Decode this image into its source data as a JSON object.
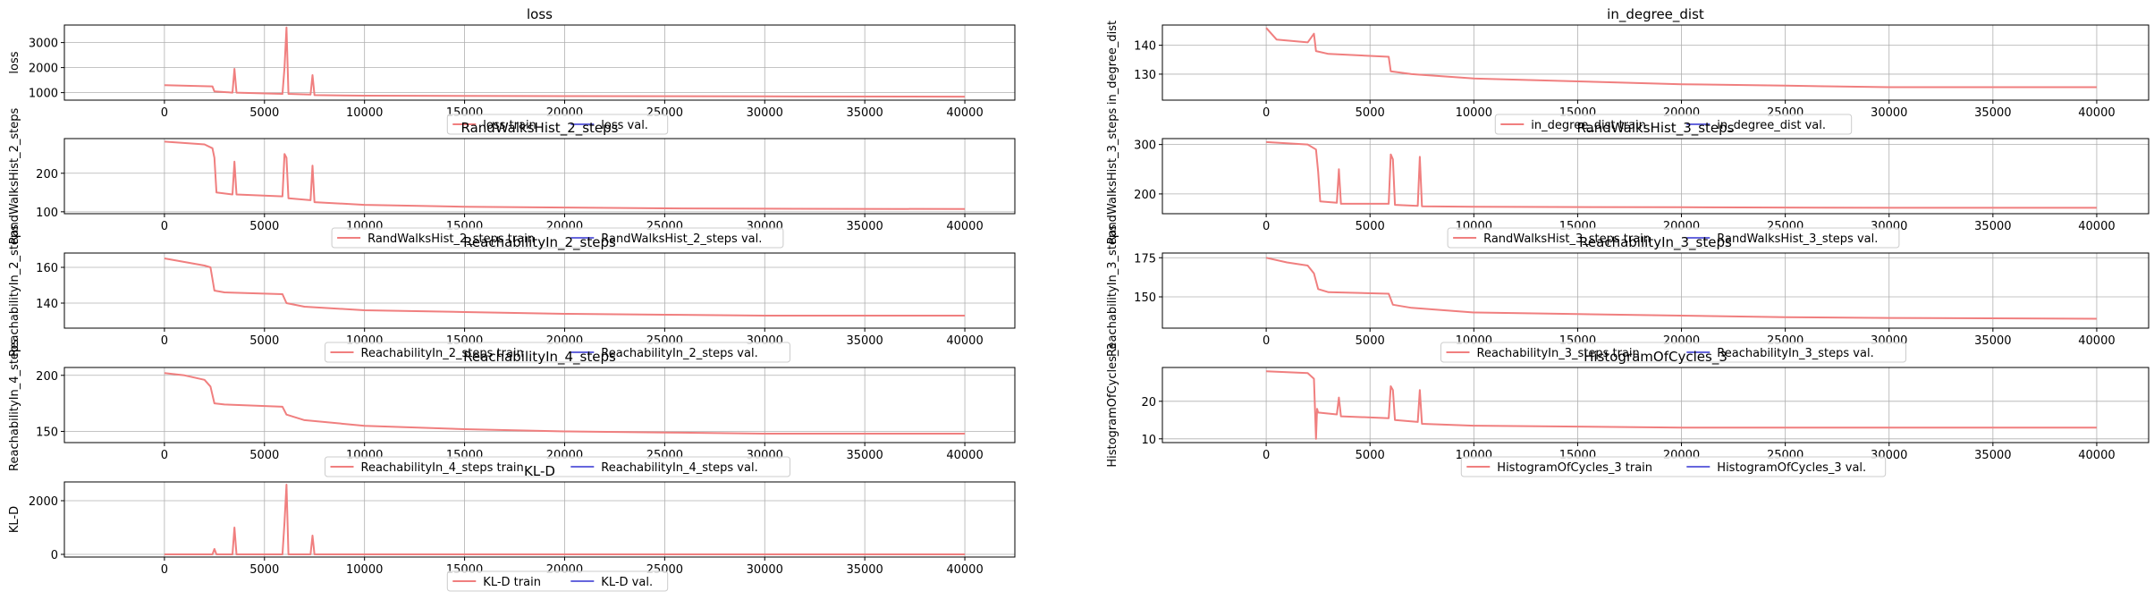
{
  "figure": {
    "x_ticks": [
      "0",
      "5000",
      "10000",
      "15000",
      "20000",
      "25000",
      "30000",
      "35000",
      "40000"
    ]
  },
  "colors": {
    "train": "#f07f7f",
    "val": "#6666dd",
    "grid": "#b0b0b0"
  },
  "chart_data": [
    {
      "id": "loss",
      "type": "line",
      "title": "loss",
      "ylabel": "loss",
      "xlim": [
        -5000,
        42500
      ],
      "ylim": [
        700,
        3700
      ],
      "yticks": [
        1000,
        2000,
        3000
      ],
      "grid": true,
      "legend": {
        "placement": "lower-center",
        "entries": [
          "loss train",
          "loss val."
        ]
      },
      "series": [
        {
          "name": "loss train",
          "role": "train",
          "x": [
            0,
            2400,
            2500,
            3400,
            3500,
            3600,
            5900,
            6000,
            6100,
            6200,
            7300,
            7400,
            7500,
            10000,
            20000,
            30000,
            40000
          ],
          "y": [
            1300,
            1250,
            1050,
            1000,
            1950,
            1000,
            950,
            2000,
            3600,
            950,
            920,
            1700,
            900,
            880,
            860,
            850,
            840
          ]
        },
        {
          "name": "loss val.",
          "role": "val",
          "x": [],
          "y": []
        }
      ]
    },
    {
      "id": "in_degree",
      "type": "line",
      "title": "in_degree_dist",
      "ylabel": "in_degree_dist",
      "xlim": [
        -5000,
        42500
      ],
      "ylim": [
        121,
        147
      ],
      "yticks": [
        130,
        140
      ],
      "grid": true,
      "legend": {
        "placement": "lower-center",
        "entries": [
          "in_degree_dist train",
          "in_degree_dist val."
        ]
      },
      "series": [
        {
          "name": "in_degree_dist train",
          "role": "train",
          "x": [
            0,
            500,
            2000,
            2300,
            2400,
            3000,
            5900,
            6000,
            7000,
            10000,
            15000,
            20000,
            25000,
            30000,
            35000,
            40000
          ],
          "y": [
            146,
            142,
            141,
            144,
            138,
            137,
            136,
            131,
            130,
            128.5,
            127.5,
            126.5,
            126,
            125.5,
            125.5,
            125.5
          ]
        },
        {
          "name": "in_degree_dist val.",
          "role": "val",
          "x": [],
          "y": []
        }
      ]
    },
    {
      "id": "rw2",
      "type": "line",
      "title": "RandWalksHist_2_steps",
      "ylabel": "RandWalksHist_2_steps",
      "xlim": [
        -5000,
        42500
      ],
      "ylim": [
        95,
        290
      ],
      "yticks": [
        100,
        200
      ],
      "grid": true,
      "legend": {
        "placement": "lower-center",
        "entries": [
          "RandWalksHist_2_steps train",
          "RandWalksHist_2_steps val."
        ]
      },
      "series": [
        {
          "name": "RandWalksHist_2_steps train",
          "role": "train",
          "x": [
            0,
            2000,
            2400,
            2500,
            2600,
            3400,
            3500,
            3600,
            5900,
            6000,
            6100,
            6200,
            7300,
            7400,
            7500,
            10000,
            15000,
            20000,
            25000,
            30000,
            40000
          ],
          "y": [
            282,
            275,
            265,
            240,
            150,
            145,
            230,
            145,
            140,
            250,
            240,
            135,
            130,
            220,
            125,
            118,
            113,
            111,
            109,
            108,
            107
          ]
        },
        {
          "name": "RandWalksHist_2_steps val.",
          "role": "val",
          "x": [],
          "y": []
        }
      ]
    },
    {
      "id": "rw3",
      "type": "line",
      "title": "RandWalksHist_3_steps",
      "ylabel": "RandWalksHist_3_steps",
      "xlim": [
        -5000,
        42500
      ],
      "ylim": [
        160,
        312
      ],
      "yticks": [
        200,
        300
      ],
      "grid": true,
      "legend": {
        "placement": "lower-center",
        "entries": [
          "RandWalksHist_3_steps train",
          "RandWalksHist_3_steps val."
        ]
      },
      "series": [
        {
          "name": "RandWalksHist_3_steps train",
          "role": "train",
          "x": [
            0,
            2000,
            2400,
            2500,
            2600,
            3400,
            3500,
            3600,
            5900,
            6000,
            6100,
            6200,
            7300,
            7400,
            7500,
            10000,
            20000,
            30000,
            40000
          ],
          "y": [
            305,
            300,
            290,
            245,
            185,
            182,
            250,
            180,
            180,
            280,
            270,
            178,
            176,
            275,
            175,
            174,
            173,
            172,
            172
          ]
        },
        {
          "name": "RandWalksHist_3_steps val.",
          "role": "val",
          "x": [],
          "y": []
        }
      ]
    },
    {
      "id": "reach2",
      "type": "line",
      "title": "ReachabilityIn_2_steps",
      "ylabel": "ReachabilityIn_2_steps",
      "xlim": [
        -5000,
        42500
      ],
      "ylim": [
        126,
        168
      ],
      "yticks": [
        140,
        160
      ],
      "grid": true,
      "legend": {
        "placement": "lower-center",
        "entries": [
          "ReachabilityIn_2_steps train",
          "ReachabilityIn_2_steps val."
        ]
      },
      "series": [
        {
          "name": "ReachabilityIn_2_steps train",
          "role": "train",
          "x": [
            0,
            1000,
            2000,
            2300,
            2500,
            3000,
            5900,
            6100,
            7000,
            10000,
            15000,
            20000,
            25000,
            30000,
            40000
          ],
          "y": [
            165,
            163,
            161,
            160,
            147,
            146,
            145,
            140,
            138,
            136,
            135,
            134,
            133.5,
            133,
            133
          ]
        },
        {
          "name": "ReachabilityIn_2_steps val.",
          "role": "val",
          "x": [],
          "y": []
        }
      ]
    },
    {
      "id": "reach3",
      "type": "line",
      "title": "ReachabilityIn_3_steps",
      "ylabel": "ReachabilityIn_3_steps",
      "xlim": [
        -5000,
        42500
      ],
      "ylim": [
        130,
        178
      ],
      "yticks": [
        150,
        175
      ],
      "grid": true,
      "legend": {
        "placement": "lower-center",
        "entries": [
          "ReachabilityIn_3_steps train",
          "ReachabilityIn_3_steps val."
        ]
      },
      "series": [
        {
          "name": "ReachabilityIn_3_steps train",
          "role": "train",
          "x": [
            0,
            1000,
            2000,
            2300,
            2500,
            3000,
            5900,
            6100,
            7000,
            10000,
            15000,
            20000,
            25000,
            30000,
            40000
          ],
          "y": [
            175,
            172,
            170,
            165,
            155,
            153,
            152,
            145,
            143,
            140,
            139,
            138,
            137,
            136.5,
            136
          ]
        },
        {
          "name": "ReachabilityIn_3_steps val.",
          "role": "val",
          "x": [],
          "y": []
        }
      ]
    },
    {
      "id": "reach4",
      "type": "line",
      "title": "ReachabilityIn_4_steps",
      "ylabel": "ReachabilityIn_4_steps",
      "xlim": [
        -5000,
        42500
      ],
      "ylim": [
        140,
        207
      ],
      "yticks": [
        150,
        200
      ],
      "grid": true,
      "legend": {
        "placement": "lower-center",
        "entries": [
          "ReachabilityIn_4_steps train",
          "ReachabilityIn_4_steps val."
        ]
      },
      "series": [
        {
          "name": "ReachabilityIn_4_steps train",
          "role": "train",
          "x": [
            0,
            1000,
            2000,
            2300,
            2500,
            3000,
            5900,
            6100,
            7000,
            10000,
            15000,
            20000,
            25000,
            30000,
            40000
          ],
          "y": [
            202,
            200,
            196,
            190,
            175,
            174,
            172,
            165,
            160,
            155,
            152,
            150,
            149,
            148,
            148
          ]
        },
        {
          "name": "ReachabilityIn_4_steps val.",
          "role": "val",
          "x": [],
          "y": []
        }
      ]
    },
    {
      "id": "cycles3",
      "type": "line",
      "title": "HistogramOfCycles_3",
      "ylabel": "HistogramOfCycles_3",
      "xlim": [
        -5000,
        42500
      ],
      "ylim": [
        9,
        29
      ],
      "yticks": [
        10,
        20
      ],
      "grid": true,
      "legend": {
        "placement": "lower-center",
        "entries": [
          "HistogramOfCycles_3 train",
          "HistogramOfCycles_3 val."
        ]
      },
      "series": [
        {
          "name": "HistogramOfCycles_3 train",
          "role": "train",
          "x": [
            0,
            2000,
            2300,
            2400,
            2450,
            2500,
            3400,
            3500,
            3600,
            5900,
            6000,
            6100,
            6200,
            7300,
            7400,
            7500,
            10000,
            20000,
            30000,
            40000
          ],
          "y": [
            28,
            27.5,
            26,
            10,
            18,
            17,
            16.5,
            21,
            16,
            15.5,
            24,
            23,
            15,
            14.5,
            23,
            14,
            13.5,
            13,
            13,
            13
          ]
        },
        {
          "name": "HistogramOfCycles_3 val.",
          "role": "val",
          "x": [],
          "y": []
        }
      ]
    },
    {
      "id": "kld",
      "type": "line",
      "title": "KL-D",
      "ylabel": "KL-D",
      "xlim": [
        -5000,
        42500
      ],
      "ylim": [
        -100,
        2700
      ],
      "yticks": [
        0,
        2000
      ],
      "grid": true,
      "legend": {
        "placement": "lower-center",
        "entries": [
          "KL-D train",
          "KL-D val."
        ]
      },
      "series": [
        {
          "name": "KL-D train",
          "role": "train",
          "x": [
            0,
            2400,
            2500,
            2600,
            3400,
            3500,
            3600,
            5900,
            6000,
            6100,
            6200,
            7300,
            7400,
            7500,
            10000,
            40000
          ],
          "y": [
            0,
            0,
            200,
            0,
            0,
            1000,
            0,
            0,
            1200,
            2600,
            0,
            0,
            700,
            0,
            0,
            0
          ]
        },
        {
          "name": "KL-D val.",
          "role": "val",
          "x": [],
          "y": []
        }
      ]
    }
  ]
}
